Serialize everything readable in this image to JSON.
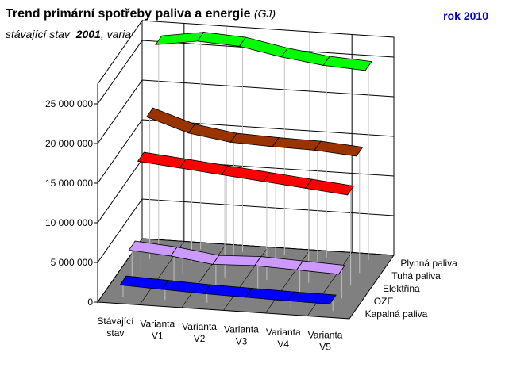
{
  "header": {
    "title": "Trend primární spotřeby paliva a energie",
    "unit": "(GJ)",
    "year_label": "rok 2010",
    "subtitle_prefix": "stávající stav",
    "subtitle_year": "2001",
    "subtitle_suffix": ", variantní výhled"
  },
  "chart_data": {
    "type": "line",
    "view": "3d",
    "categories": [
      [
        "Stávající",
        "stav"
      ],
      [
        "Varianta",
        "V1"
      ],
      [
        "Varianta",
        "V2"
      ],
      [
        "Varianta",
        "V3"
      ],
      [
        "Varianta",
        "V4"
      ],
      [
        "Varianta",
        "V5"
      ]
    ],
    "series": [
      {
        "name": "Kapalná paliva",
        "color": "#0000ff",
        "values": [
          2100000,
          1900000,
          1700000,
          1600000,
          1500000,
          1450000
        ]
      },
      {
        "name": "OZE",
        "color": "#cc99ff",
        "values": [
          4900000,
          4500000,
          3800000,
          4000000,
          3800000,
          3600000
        ]
      },
      {
        "name": "Elektřina",
        "color": "#ff0000",
        "values": [
          14500000,
          14000000,
          13500000,
          13000000,
          12500000,
          12000000
        ]
      },
      {
        "name": "Tuhá paliva",
        "color": "#993300",
        "values": [
          18500000,
          16800000,
          16000000,
          15800000,
          15700000,
          15300000
        ]
      },
      {
        "name": "Plynná paliva",
        "color": "#00ff00",
        "values": [
          26000000,
          26800000,
          26500000,
          25500000,
          24800000,
          24500000
        ]
      }
    ],
    "yticks": [
      "0",
      "5 000 000",
      "10 000 000",
      "15 000 000",
      "20 000 000",
      "25 000 000"
    ],
    "ylim": [
      0,
      25000000
    ],
    "grid": true,
    "floor_color": "#808080"
  }
}
